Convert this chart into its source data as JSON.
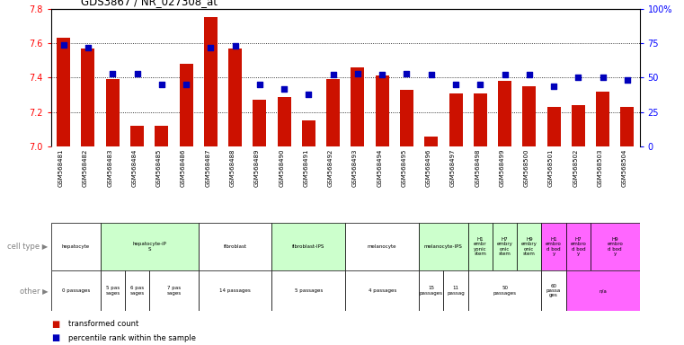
{
  "title": "GDS3867 / NR_027308_at",
  "gsm_labels": [
    "GSM568481",
    "GSM568482",
    "GSM568483",
    "GSM568484",
    "GSM568485",
    "GSM568486",
    "GSM568487",
    "GSM568488",
    "GSM568489",
    "GSM568490",
    "GSM568491",
    "GSM568492",
    "GSM568493",
    "GSM568494",
    "GSM568495",
    "GSM568496",
    "GSM568497",
    "GSM568498",
    "GSM568499",
    "GSM568500",
    "GSM568501",
    "GSM568502",
    "GSM568503",
    "GSM568504"
  ],
  "bar_values": [
    7.63,
    7.57,
    7.39,
    7.12,
    7.12,
    7.48,
    7.75,
    7.57,
    7.27,
    7.29,
    7.15,
    7.39,
    7.46,
    7.41,
    7.33,
    7.06,
    7.31,
    7.31,
    7.38,
    7.35,
    7.23,
    7.24,
    7.32,
    7.23
  ],
  "percentile_values": [
    74,
    72,
    53,
    53,
    45,
    45,
    72,
    73,
    45,
    42,
    38,
    52,
    53,
    52,
    53,
    52,
    45,
    45,
    52,
    52,
    44,
    50,
    50,
    48
  ],
  "ymin": 7.0,
  "ymax": 7.8,
  "yticks": [
    7.0,
    7.2,
    7.4,
    7.6,
    7.8
  ],
  "right_yticks": [
    0,
    25,
    50,
    75,
    100
  ],
  "right_ytick_labels": [
    "0",
    "25",
    "50",
    "75",
    "100%"
  ],
  "bar_color": "#cc1100",
  "dot_color": "#0000bb",
  "cell_type_groups": [
    {
      "label": "hepatocyte",
      "start": 0,
      "end": 2,
      "color": "#ffffff"
    },
    {
      "label": "hepatocyte-iP\nS",
      "start": 2,
      "end": 6,
      "color": "#ccffcc"
    },
    {
      "label": "fibroblast",
      "start": 6,
      "end": 9,
      "color": "#ffffff"
    },
    {
      "label": "fibroblast-IPS",
      "start": 9,
      "end": 12,
      "color": "#ccffcc"
    },
    {
      "label": "melanocyte",
      "start": 12,
      "end": 15,
      "color": "#ffffff"
    },
    {
      "label": "melanocyte-IPS",
      "start": 15,
      "end": 17,
      "color": "#ccffcc"
    },
    {
      "label": "H1\nembr\nyonic\nstem",
      "start": 17,
      "end": 18,
      "color": "#ccffcc"
    },
    {
      "label": "H7\nembry\nonic\nstem",
      "start": 18,
      "end": 19,
      "color": "#ccffcc"
    },
    {
      "label": "H9\nembry\nonic\nstem",
      "start": 19,
      "end": 20,
      "color": "#ccffcc"
    },
    {
      "label": "H1\nembro\nd bod\ny",
      "start": 20,
      "end": 21,
      "color": "#ff66ff"
    },
    {
      "label": "H7\nembro\nd bod\ny",
      "start": 21,
      "end": 22,
      "color": "#ff66ff"
    },
    {
      "label": "H9\nembro\nd bod\ny",
      "start": 22,
      "end": 24,
      "color": "#ff66ff"
    }
  ],
  "other_groups": [
    {
      "label": "0 passages",
      "start": 0,
      "end": 2,
      "color": "#ffffff"
    },
    {
      "label": "5 pas\nsages",
      "start": 2,
      "end": 3,
      "color": "#ffffff"
    },
    {
      "label": "6 pas\nsages",
      "start": 3,
      "end": 4,
      "color": "#ffffff"
    },
    {
      "label": "7 pas\nsages",
      "start": 4,
      "end": 6,
      "color": "#ffffff"
    },
    {
      "label": "14 passages",
      "start": 6,
      "end": 9,
      "color": "#ffffff"
    },
    {
      "label": "5 passages",
      "start": 9,
      "end": 12,
      "color": "#ffffff"
    },
    {
      "label": "4 passages",
      "start": 12,
      "end": 15,
      "color": "#ffffff"
    },
    {
      "label": "15\npassages",
      "start": 15,
      "end": 16,
      "color": "#ffffff"
    },
    {
      "label": "11\npassag",
      "start": 16,
      "end": 17,
      "color": "#ffffff"
    },
    {
      "label": "50\npassages",
      "start": 17,
      "end": 20,
      "color": "#ffffff"
    },
    {
      "label": "60\npassa\nges",
      "start": 20,
      "end": 21,
      "color": "#ffffff"
    },
    {
      "label": "n/a",
      "start": 21,
      "end": 24,
      "color": "#ff66ff"
    }
  ],
  "xticklabel_bg": "#cccccc",
  "fig_width": 7.61,
  "fig_height": 3.84
}
